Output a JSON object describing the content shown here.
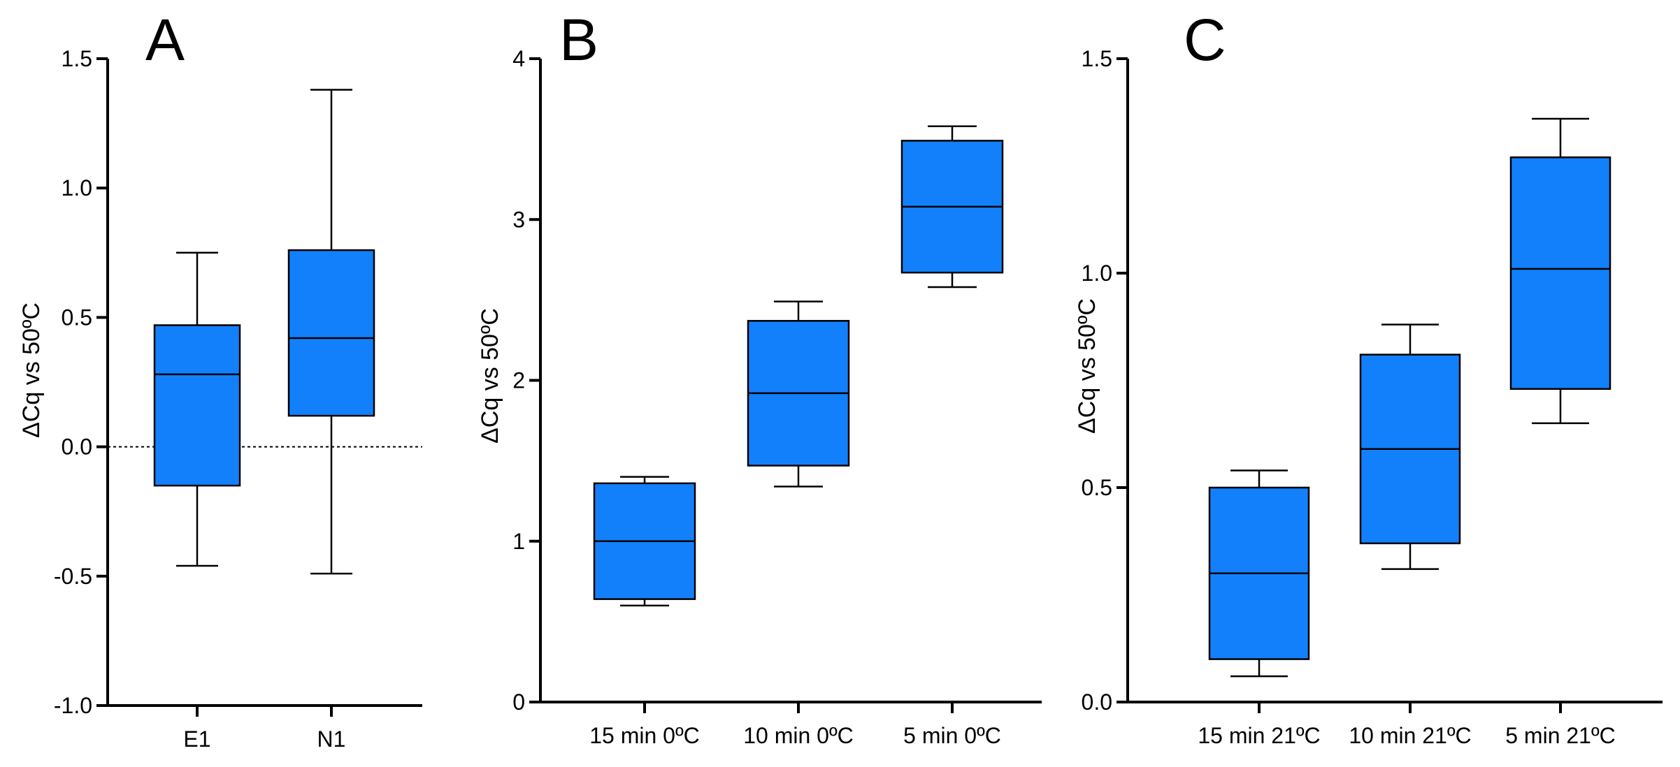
{
  "chart_data": [
    {
      "panel": "A",
      "type": "box",
      "ylabel": "ΔCq vs 50ºC",
      "ylim": [
        -1.0,
        1.5
      ],
      "yticks": [
        "1.5",
        "1.0",
        "0.5",
        "0.0",
        "-0.5",
        "-1.0"
      ],
      "ytick_values": [
        1.5,
        1.0,
        0.5,
        0.0,
        -0.5,
        -1.0
      ],
      "categories": [
        "E1",
        "N1"
      ],
      "reference_line": 0.0,
      "boxes": [
        {
          "min": -0.46,
          "q1": -0.15,
          "median": 0.28,
          "q3": 0.47,
          "max": 0.75
        },
        {
          "min": -0.49,
          "q1": 0.12,
          "median": 0.42,
          "q3": 0.76,
          "max": 1.38
        }
      ]
    },
    {
      "panel": "B",
      "type": "box",
      "ylabel": "ΔCq vs 50ºC",
      "ylim": [
        0,
        4
      ],
      "yticks": [
        "4",
        "3",
        "2",
        "1",
        "0"
      ],
      "ytick_values": [
        4,
        3,
        2,
        1,
        0
      ],
      "categories": [
        "15 min 0ºC",
        "10 min 0ºC",
        "5 min 0ºC"
      ],
      "boxes": [
        {
          "min": 0.6,
          "q1": 0.64,
          "median": 1.0,
          "q3": 1.36,
          "max": 1.4
        },
        {
          "min": 1.34,
          "q1": 1.47,
          "median": 1.92,
          "q3": 2.37,
          "max": 2.49
        },
        {
          "min": 2.58,
          "q1": 2.67,
          "median": 3.08,
          "q3": 3.49,
          "max": 3.58
        }
      ]
    },
    {
      "panel": "C",
      "type": "box",
      "ylabel": "ΔCq vs 50ºC",
      "ylim": [
        0,
        1.5
      ],
      "yticks": [
        "1.5",
        "1.0",
        "0.5",
        "0.0"
      ],
      "ytick_values": [
        1.5,
        1.0,
        0.5,
        0.0
      ],
      "categories": [
        "15 min 21ºC",
        "10 min 21ºC",
        "5 min 21ºC"
      ],
      "boxes": [
        {
          "min": 0.06,
          "q1": 0.1,
          "median": 0.3,
          "q3": 0.5,
          "max": 0.54
        },
        {
          "min": 0.31,
          "q1": 0.37,
          "median": 0.59,
          "q3": 0.81,
          "max": 0.88
        },
        {
          "min": 0.65,
          "q1": 0.73,
          "median": 1.01,
          "q3": 1.27,
          "max": 1.36
        }
      ]
    }
  ],
  "style": {
    "box_fill": "#1380fb",
    "stroke": "#000000"
  }
}
